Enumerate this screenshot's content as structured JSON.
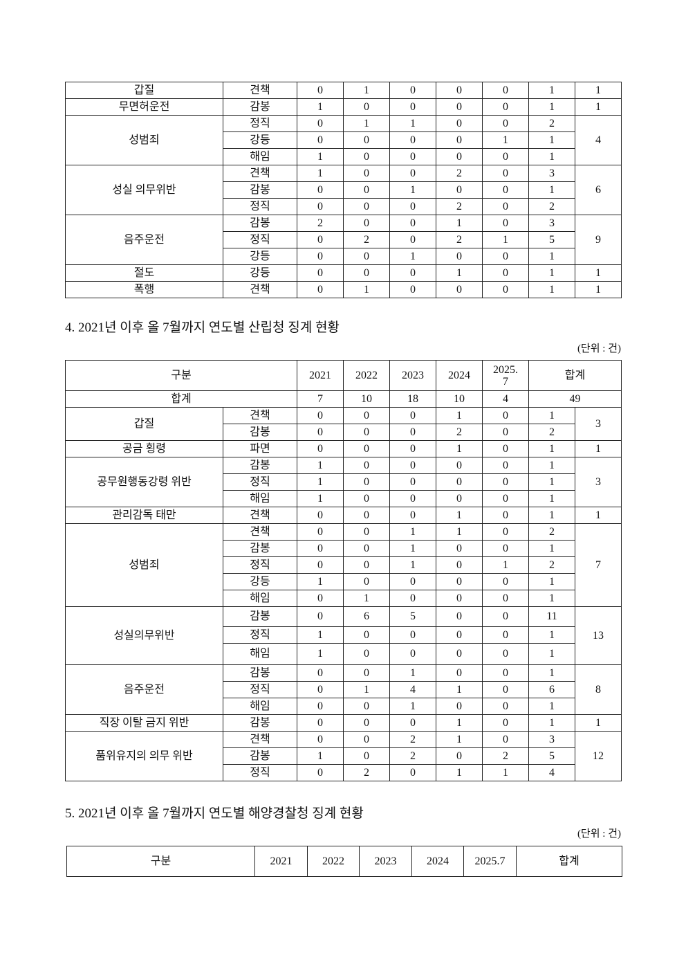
{
  "section3_continued": {
    "groups": [
      {
        "category": "갑질",
        "rows": [
          {
            "type": "견책",
            "values": [
              "0",
              "1",
              "0",
              "0",
              "0"
            ],
            "subtotal": "1"
          }
        ],
        "total": "1"
      },
      {
        "category": "무면허운전",
        "rows": [
          {
            "type": "감봉",
            "values": [
              "1",
              "0",
              "0",
              "0",
              "0"
            ],
            "subtotal": "1"
          }
        ],
        "total": "1"
      },
      {
        "category": "성범죄",
        "rows": [
          {
            "type": "정직",
            "values": [
              "0",
              "1",
              "1",
              "0",
              "0"
            ],
            "subtotal": "2"
          },
          {
            "type": "강등",
            "values": [
              "0",
              "0",
              "0",
              "0",
              "1"
            ],
            "subtotal": "1"
          },
          {
            "type": "해임",
            "values": [
              "1",
              "0",
              "0",
              "0",
              "0"
            ],
            "subtotal": "1"
          }
        ],
        "total": "4"
      },
      {
        "category": "성실 의무위반",
        "rows": [
          {
            "type": "견책",
            "values": [
              "1",
              "0",
              "0",
              "2",
              "0"
            ],
            "subtotal": "3"
          },
          {
            "type": "감봉",
            "values": [
              "0",
              "0",
              "1",
              "0",
              "0"
            ],
            "subtotal": "1"
          },
          {
            "type": "정직",
            "values": [
              "0",
              "0",
              "0",
              "2",
              "0"
            ],
            "subtotal": "2"
          }
        ],
        "total": "6"
      },
      {
        "category": "음주운전",
        "rows": [
          {
            "type": "감봉",
            "values": [
              "2",
              "0",
              "0",
              "1",
              "0"
            ],
            "subtotal": "3"
          },
          {
            "type": "정직",
            "values": [
              "0",
              "2",
              "0",
              "2",
              "1"
            ],
            "subtotal": "5"
          },
          {
            "type": "강등",
            "values": [
              "0",
              "0",
              "1",
              "0",
              "0"
            ],
            "subtotal": "1"
          }
        ],
        "total": "9"
      },
      {
        "category": "절도",
        "rows": [
          {
            "type": "강등",
            "values": [
              "0",
              "0",
              "0",
              "1",
              "0"
            ],
            "subtotal": "1"
          }
        ],
        "total": "1"
      },
      {
        "category": "폭행",
        "rows": [
          {
            "type": "견책",
            "values": [
              "0",
              "1",
              "0",
              "0",
              "0"
            ],
            "subtotal": "1"
          }
        ],
        "total": "1"
      }
    ]
  },
  "section4": {
    "heading": "4. 2021년 이후 올 7월까지 연도별 산립청 징계 현황",
    "unit": "(단위 : 건)",
    "header": {
      "category": "구분",
      "years": [
        "2021",
        "2022",
        "2023",
        "2024",
        "2025.\n7"
      ],
      "total": "합계"
    },
    "total_row": {
      "label": "합계",
      "values": [
        "7",
        "10",
        "18",
        "10",
        "4"
      ],
      "total": "49"
    },
    "groups": [
      {
        "category": "갑질",
        "rows": [
          {
            "type": "견책",
            "values": [
              "0",
              "0",
              "0",
              "1",
              "0"
            ],
            "subtotal": "1"
          },
          {
            "type": "감봉",
            "values": [
              "0",
              "0",
              "0",
              "2",
              "0"
            ],
            "subtotal": "2"
          }
        ],
        "total": "3"
      },
      {
        "category": "공금 횡령",
        "rows": [
          {
            "type": "파면",
            "values": [
              "0",
              "0",
              "0",
              "1",
              "0"
            ],
            "subtotal": "1"
          }
        ],
        "total": "1"
      },
      {
        "category": "공무원행동강령 위반",
        "rows": [
          {
            "type": "감봉",
            "values": [
              "1",
              "0",
              "0",
              "0",
              "0"
            ],
            "subtotal": "1"
          },
          {
            "type": "정직",
            "values": [
              "1",
              "0",
              "0",
              "0",
              "0"
            ],
            "subtotal": "1"
          },
          {
            "type": "해임",
            "values": [
              "1",
              "0",
              "0",
              "0",
              "0"
            ],
            "subtotal": "1"
          }
        ],
        "total": "3"
      },
      {
        "category": "관리감독 태만",
        "rows": [
          {
            "type": "견책",
            "values": [
              "0",
              "0",
              "0",
              "1",
              "0"
            ],
            "subtotal": "1"
          }
        ],
        "total": "1"
      },
      {
        "category": "성범죄",
        "rows": [
          {
            "type": "견책",
            "values": [
              "0",
              "0",
              "1",
              "1",
              "0"
            ],
            "subtotal": "2"
          },
          {
            "type": "감봉",
            "values": [
              "0",
              "0",
              "1",
              "0",
              "0"
            ],
            "subtotal": "1"
          },
          {
            "type": "정직",
            "values": [
              "0",
              "0",
              "1",
              "0",
              "1"
            ],
            "subtotal": "2"
          },
          {
            "type": "강등",
            "values": [
              "1",
              "0",
              "0",
              "0",
              "0"
            ],
            "subtotal": "1"
          },
          {
            "type": "해임",
            "values": [
              "0",
              "1",
              "0",
              "0",
              "0"
            ],
            "subtotal": "1"
          }
        ],
        "total": "7"
      },
      {
        "category": "성실의무위반",
        "rows": [
          {
            "type": "감봉",
            "values": [
              "0",
              "6",
              "5",
              "0",
              "0"
            ],
            "subtotal": "11"
          },
          {
            "type": "정직",
            "values": [
              "1",
              "0",
              "0",
              "0",
              "0"
            ],
            "subtotal": "1"
          },
          {
            "type": "해임",
            "values": [
              "1",
              "0",
              "0",
              "0",
              "0"
            ],
            "subtotal": "1"
          }
        ],
        "total": "13"
      },
      {
        "category": "음주운전",
        "rows": [
          {
            "type": "감봉",
            "values": [
              "0",
              "0",
              "1",
              "0",
              "0"
            ],
            "subtotal": "1"
          },
          {
            "type": "정직",
            "values": [
              "0",
              "1",
              "4",
              "1",
              "0"
            ],
            "subtotal": "6"
          },
          {
            "type": "해임",
            "values": [
              "0",
              "0",
              "1",
              "0",
              "0"
            ],
            "subtotal": "1"
          }
        ],
        "total": "8"
      },
      {
        "category": "직장 이탈 금지 위반",
        "rows": [
          {
            "type": "감봉",
            "values": [
              "0",
              "0",
              "0",
              "1",
              "0"
            ],
            "subtotal": "1"
          }
        ],
        "total": "1"
      },
      {
        "category": "품위유지의 의무 위반",
        "rows": [
          {
            "type": "견책",
            "values": [
              "0",
              "0",
              "2",
              "1",
              "0"
            ],
            "subtotal": "3"
          },
          {
            "type": "감봉",
            "values": [
              "1",
              "0",
              "2",
              "0",
              "2"
            ],
            "subtotal": "5"
          },
          {
            "type": "정직",
            "values": [
              "0",
              "2",
              "0",
              "1",
              "1"
            ],
            "subtotal": "4"
          }
        ],
        "total": "12"
      }
    ]
  },
  "section5": {
    "heading": "5. 2021년 이후 올 7월까지 연도별 해양경찰청 징계 현황",
    "unit": "(단위 : 건)",
    "header": {
      "category": "구분",
      "years": [
        "2021",
        "2022",
        "2023",
        "2024",
        "2025.7"
      ],
      "total": "합계"
    }
  }
}
